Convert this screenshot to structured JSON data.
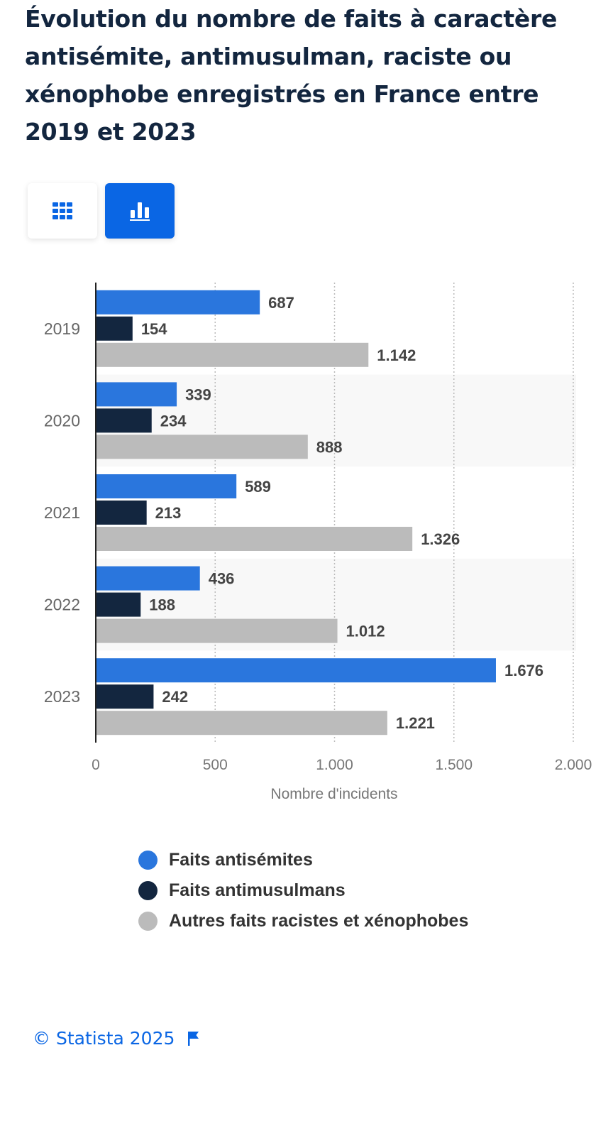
{
  "title": "Évolution du nombre de faits à caractère antisémite, antimusulman, raciste ou xénophobe enregistrés en France entre 2019 et 2023",
  "view_toggle": {
    "table_icon": "grid-icon",
    "chart_icon": "bar-chart-icon",
    "active": "chart"
  },
  "colors": {
    "accent": "#0a66e4",
    "series": [
      "#2a76dd",
      "#13263f",
      "#bbbbbb"
    ]
  },
  "chart_data": {
    "type": "bar",
    "orientation": "horizontal",
    "title": "Évolution du nombre de faits à caractère antisémite, antimusulman, raciste ou xénophobe enregistrés en France entre 2019 et 2023",
    "categories": [
      "2019",
      "2020",
      "2021",
      "2022",
      "2023"
    ],
    "series": [
      {
        "name": "Faits antisémites",
        "values": [
          687,
          339,
          589,
          436,
          1676
        ],
        "labels": [
          "687",
          "339",
          "589",
          "436",
          "1.676"
        ]
      },
      {
        "name": "Faits antimusulmans",
        "values": [
          154,
          234,
          213,
          188,
          242
        ],
        "labels": [
          "154",
          "234",
          "213",
          "188",
          "242"
        ]
      },
      {
        "name": "Autres faits racistes et xénophobes",
        "values": [
          1142,
          888,
          1326,
          1012,
          1221
        ],
        "labels": [
          "1.142",
          "888",
          "1.326",
          "1.012",
          "1.221"
        ]
      }
    ],
    "xlabel": "Nombre d'incidents",
    "ylabel": "",
    "xlim": [
      0,
      2000
    ],
    "xticks": [
      0,
      500,
      1000,
      1500,
      2000
    ],
    "xtick_labels": [
      "0",
      "500",
      "1.000",
      "1.500",
      "2.000"
    ],
    "grid": true,
    "legend_position": "bottom"
  },
  "legend": [
    {
      "label": "Faits antisémites"
    },
    {
      "label": "Faits antimusulmans"
    },
    {
      "label": "Autres faits racistes et xénophobes"
    }
  ],
  "footer": {
    "credit": "© Statista 2025",
    "flag_icon": "flag-icon"
  }
}
